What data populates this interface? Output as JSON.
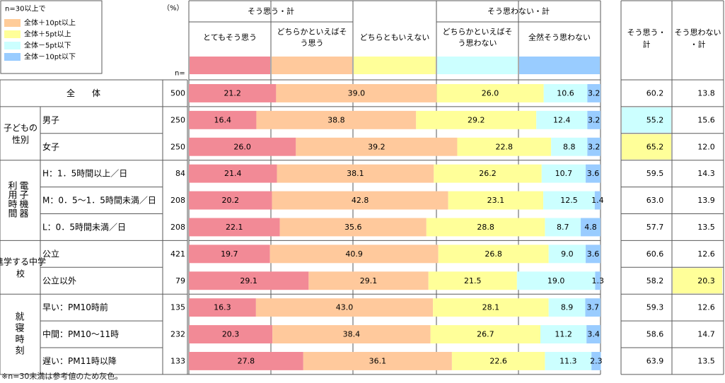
{
  "legend": {
    "title": "n=30以上で",
    "items": [
      {
        "label": "全体＋10pt以上",
        "color": "#ffcc99"
      },
      {
        "label": "全体＋5pt以上",
        "color": "#ffff99"
      },
      {
        "label": "全体－5pt以下",
        "color": "#ccffff"
      },
      {
        "label": "全体－10pt以下",
        "color": "#99ccff"
      }
    ]
  },
  "percent_unit": "（%）",
  "n_label": "n=",
  "header": {
    "agree_total": "そう思う・計",
    "disagree_total": "そう思わない・計",
    "right_agree": "そう思う・計",
    "right_disagree": "そう思わない・計"
  },
  "footnote": "※n=30未満は参考値のため灰色。",
  "chart_data": {
    "type": "bar",
    "orientation": "horizontal",
    "stacked": true,
    "xlim": [
      0,
      100
    ],
    "categories": [
      "全　　体",
      "男子",
      "女子",
      "H：1．5時間以上／日",
      "M：0．5～1．5時間未満／日",
      "L：0．5時間未満／日",
      "公立",
      "公立以外",
      "早い：PM10時前",
      "中間：PM10～11時",
      "遅い：PM11時以降"
    ],
    "groups": [
      {
        "label": "",
        "rows": 1
      },
      {
        "label": "子どもの性別",
        "rows": 2
      },
      {
        "label": "電子機器利用時間",
        "rows": 3
      },
      {
        "label": "進学する中学校",
        "rows": 2
      },
      {
        "label": "就寝時刻",
        "rows": 3
      }
    ],
    "n": [
      500,
      250,
      250,
      84,
      208,
      208,
      421,
      79,
      135,
      232,
      133
    ],
    "series": [
      {
        "name": "とてもそう思う",
        "color": "#f28a96",
        "values": [
          21.2,
          16.4,
          26.0,
          21.4,
          20.2,
          22.1,
          19.7,
          29.1,
          16.3,
          20.3,
          27.8
        ]
      },
      {
        "name": "どちらかといえばそう思う",
        "color": "#ffc99c",
        "values": [
          39.0,
          38.8,
          39.2,
          38.1,
          42.8,
          35.6,
          40.9,
          29.1,
          43.0,
          38.4,
          36.1
        ]
      },
      {
        "name": "どちらともいえない",
        "color": "#ffff99",
        "values": [
          26.0,
          29.2,
          22.8,
          26.2,
          23.1,
          28.8,
          26.8,
          21.5,
          28.1,
          26.7,
          22.6
        ]
      },
      {
        "name": "どちらかといえばそう思わない",
        "color": "#ccffff",
        "values": [
          10.6,
          12.4,
          8.8,
          10.7,
          12.5,
          8.7,
          9.0,
          19.0,
          8.9,
          11.2,
          11.3
        ]
      },
      {
        "name": "全然そう思わない",
        "color": "#99ccff",
        "values": [
          3.2,
          3.2,
          3.2,
          3.6,
          1.4,
          4.8,
          3.6,
          1.3,
          3.7,
          3.4,
          2.3
        ]
      }
    ],
    "totals": {
      "agree": [
        60.2,
        55.2,
        65.2,
        59.5,
        63.0,
        57.7,
        60.6,
        58.2,
        59.3,
        58.6,
        63.9
      ],
      "disagree": [
        13.8,
        15.6,
        12.0,
        14.3,
        13.9,
        13.5,
        12.6,
        20.3,
        12.6,
        14.7,
        13.5
      ]
    },
    "highlights": [
      {
        "row": 1,
        "col": "agree",
        "color": "#ccffff"
      },
      {
        "row": 2,
        "col": "agree",
        "color": "#ffff99"
      },
      {
        "row": 7,
        "col": "disagree",
        "color": "#ffff99"
      }
    ]
  }
}
